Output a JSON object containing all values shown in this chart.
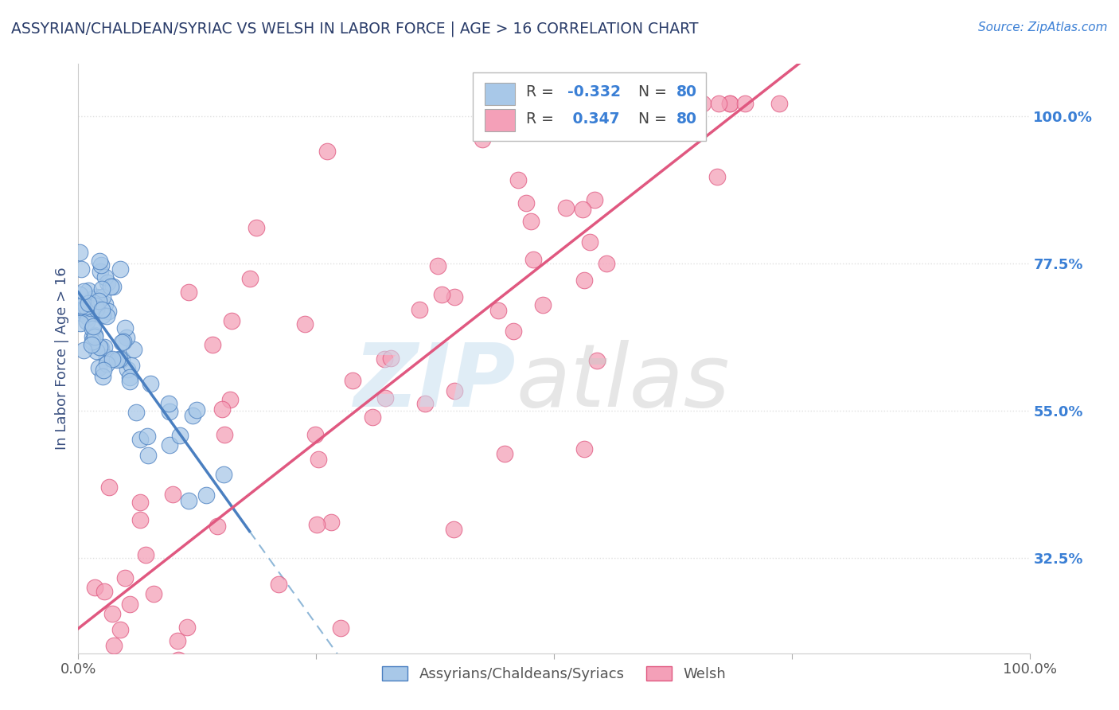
{
  "title": "ASSYRIAN/CHALDEAN/SYRIAC VS WELSH IN LABOR FORCE | AGE > 16 CORRELATION CHART",
  "source_text": "Source: ZipAtlas.com",
  "ylabel": "In Labor Force | Age > 16",
  "xlim": [
    0.0,
    1.0
  ],
  "ylim": [
    0.18,
    1.08
  ],
  "y_ticks_right": [
    1.0,
    0.775,
    0.55,
    0.325
  ],
  "y_tick_labels_right": [
    "100.0%",
    "77.5%",
    "55.0%",
    "32.5%"
  ],
  "R_assyrian": -0.332,
  "N_assyrian": 80,
  "R_welsh": 0.347,
  "N_welsh": 80,
  "legend_label_1": "Assyrians/Chaldeans/Syriacs",
  "legend_label_2": "Welsh",
  "color_assyrian": "#a8c8e8",
  "color_welsh": "#f4a0b8",
  "color_line_assyrian": "#4a7fc0",
  "color_line_welsh": "#e05880",
  "color_dashed": "#90b8d8",
  "title_color": "#2c3e6b",
  "axis_label_color": "#3a5080",
  "right_tick_color": "#3a7fd5",
  "background_color": "#ffffff",
  "grid_color": "#e0e0e0",
  "watermark_zip_color": "#c8dff0",
  "watermark_atlas_color": "#c8c8c8"
}
